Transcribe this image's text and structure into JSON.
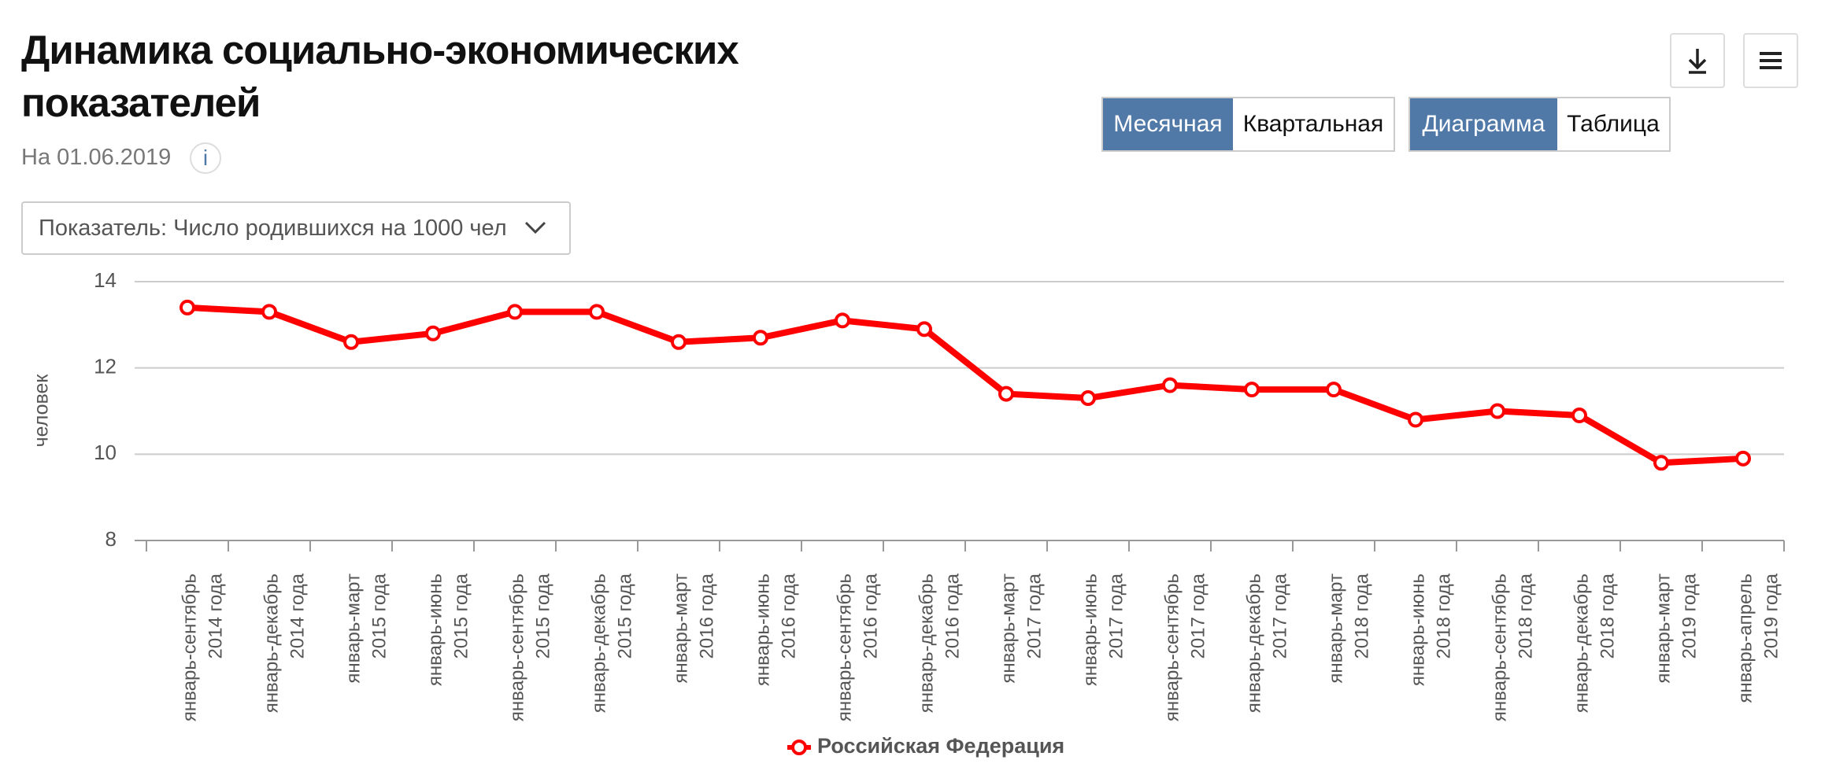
{
  "header": {
    "title": "Динамика социально-экономических показателей",
    "date": "На 01.06.2019",
    "info": "i"
  },
  "controls": {
    "indicator": "Показатель: Число родившихся на 1000 чел",
    "period": [
      "Месячная",
      "Квартальная"
    ],
    "view": [
      "Диаграмма",
      "Таблица"
    ]
  },
  "chart_data": {
    "type": "line",
    "ylabel": "человек",
    "categories": [
      [
        "январь-сентябрь",
        "2014 года"
      ],
      [
        "январь-декабрь",
        "2014 года"
      ],
      [
        "январь-март",
        "2015 года"
      ],
      [
        "январь-июнь",
        "2015 года"
      ],
      [
        "январь-сентябрь",
        "2015 года"
      ],
      [
        "январь-декабрь",
        "2015 года"
      ],
      [
        "январь-март",
        "2016 года"
      ],
      [
        "январь-июнь",
        "2016 года"
      ],
      [
        "январь-сентябрь",
        "2016 года"
      ],
      [
        "январь-декабрь",
        "2016 года"
      ],
      [
        "январь-март",
        "2017 года"
      ],
      [
        "январь-июнь",
        "2017 года"
      ],
      [
        "январь-сентябрь",
        "2017 года"
      ],
      [
        "январь-декабрь",
        "2017 года"
      ],
      [
        "январь-март",
        "2018 года"
      ],
      [
        "январь-июнь",
        "2018 года"
      ],
      [
        "январь-сентябрь",
        "2018 года"
      ],
      [
        "январь-декабрь",
        "2018 года"
      ],
      [
        "январь-март",
        "2019 года"
      ],
      [
        "январь-апрель",
        "2019 года"
      ]
    ],
    "series": [
      {
        "name": "Российская Федерация",
        "color": "#ff0000",
        "values": [
          13.4,
          13.3,
          12.6,
          12.8,
          13.3,
          13.3,
          12.6,
          12.7,
          13.1,
          12.9,
          11.4,
          11.3,
          11.6,
          11.5,
          11.5,
          10.8,
          11.0,
          10.9,
          9.8,
          9.9
        ]
      }
    ],
    "ylim": [
      8,
      14
    ],
    "yticks": [
      8,
      10,
      12,
      14
    ],
    "grid": true,
    "legend": "bottom"
  }
}
